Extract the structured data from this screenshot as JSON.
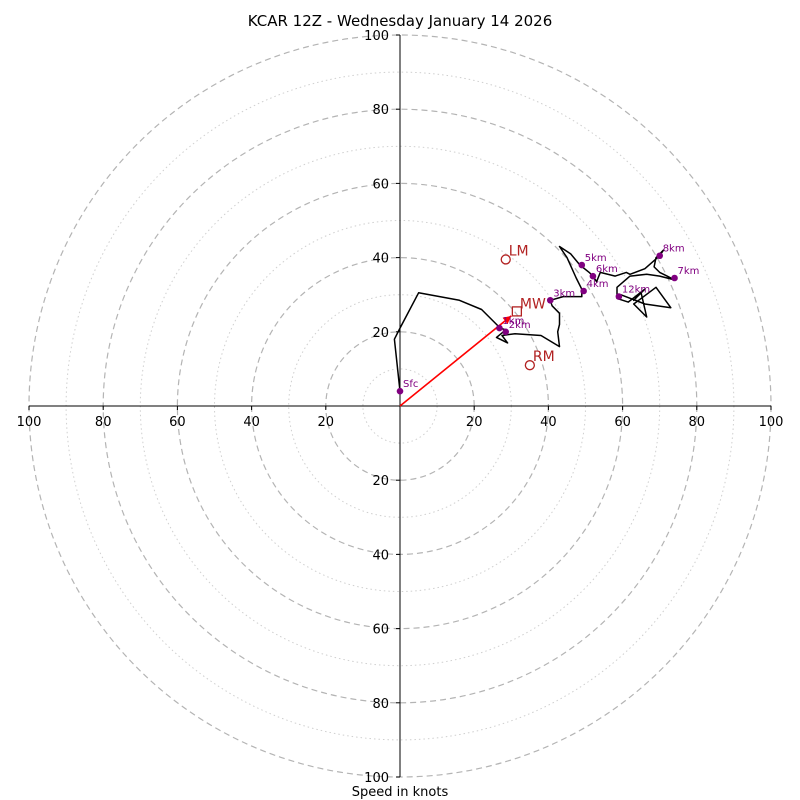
{
  "chart_data": {
    "type": "hodograph",
    "title": "KCAR 12Z - Wednesday January 14 2026",
    "xlabel": "Speed in knots",
    "range": [
      -100,
      100
    ],
    "ring_major": [
      20,
      40,
      60,
      80,
      100
    ],
    "ring_minor": [
      10,
      30,
      50,
      70,
      90
    ],
    "x_tick_labels": [
      "100",
      "80",
      "60",
      "40",
      "20",
      "20",
      "40",
      "60",
      "80",
      "100"
    ],
    "x_tick_values": [
      -100,
      -80,
      -60,
      -40,
      -20,
      20,
      40,
      60,
      80,
      100
    ],
    "y_tick_labels": [
      "100",
      "80",
      "60",
      "40",
      "20",
      "20",
      "40",
      "60",
      "80",
      "100"
    ],
    "y_tick_values": [
      100,
      80,
      60,
      40,
      20,
      -20,
      -40,
      -60,
      -80,
      -100
    ],
    "trace": [
      [
        0,
        4
      ],
      [
        -1.5,
        18
      ],
      [
        0,
        21
      ],
      [
        5,
        30.5
      ],
      [
        16,
        28.5
      ],
      [
        22,
        26
      ],
      [
        26,
        22
      ],
      [
        27,
        21
      ],
      [
        28.5,
        20.5
      ],
      [
        26,
        18.5
      ],
      [
        29,
        17
      ],
      [
        27.5,
        19
      ],
      [
        31,
        19.5
      ],
      [
        38,
        19
      ],
      [
        43,
        16
      ],
      [
        42.5,
        20
      ],
      [
        43,
        22
      ],
      [
        43,
        25
      ],
      [
        41,
        27
      ],
      [
        40.5,
        28.5
      ],
      [
        44,
        29.5
      ],
      [
        49,
        29.5
      ],
      [
        49,
        30.5
      ],
      [
        49.5,
        30.5
      ],
      [
        47.5,
        34.5
      ],
      [
        45,
        40
      ],
      [
        43,
        43
      ],
      [
        46,
        41
      ],
      [
        48.5,
        38
      ],
      [
        51,
        36
      ],
      [
        52,
        35
      ],
      [
        53,
        33.5
      ],
      [
        54,
        36
      ],
      [
        58,
        35
      ],
      [
        61,
        36
      ],
      [
        62,
        35.5
      ],
      [
        66,
        37
      ],
      [
        70,
        40.5
      ],
      [
        71,
        42
      ],
      [
        69,
        40
      ],
      [
        68.5,
        37.5
      ],
      [
        70,
        36
      ],
      [
        72,
        35
      ],
      [
        74,
        34
      ],
      [
        70,
        35
      ],
      [
        66.5,
        35.5
      ],
      [
        62,
        35
      ],
      [
        58.5,
        32
      ],
      [
        58.5,
        30
      ],
      [
        58.5,
        29
      ],
      [
        61.5,
        28
      ],
      [
        66,
        31.5
      ],
      [
        63,
        28.5
      ],
      [
        65,
        30.5
      ],
      [
        66.5,
        24
      ],
      [
        63,
        27.5
      ],
      [
        69,
        32
      ],
      [
        73,
        26.5
      ],
      [
        66,
        27.5
      ],
      [
        59.5,
        30
      ]
    ],
    "levels": [
      {
        "label": "Sfc",
        "u": 0,
        "v": 4
      },
      {
        "label": "1km",
        "u": 26.8,
        "v": 21
      },
      {
        "label": "2km",
        "u": 28.5,
        "v": 20
      },
      {
        "label": "3km",
        "u": 40.5,
        "v": 28.5
      },
      {
        "label": "4km",
        "u": 49.5,
        "v": 31
      },
      {
        "label": "5km",
        "u": 49,
        "v": 38
      },
      {
        "label": "6km",
        "u": 52,
        "v": 35
      },
      {
        "label": "7km",
        "u": 74,
        "v": 34.5
      },
      {
        "label": "8km",
        "u": 70,
        "v": 40.5
      },
      {
        "label": "12km",
        "u": 59,
        "v": 29.5
      }
    ],
    "mean_wind": {
      "label": "MW",
      "u": 31.5,
      "v": 25.5
    },
    "storm_motion": [
      {
        "label": "LM",
        "u": 28.5,
        "v": 39.5
      },
      {
        "label": "RM",
        "u": 35,
        "v": 11
      }
    ],
    "colors": {
      "trace": "#000000",
      "levels": "#800080",
      "motion": "#b22222",
      "vector": "#ff0000",
      "ring": "#b4b4b4",
      "axis": "#000000"
    }
  }
}
